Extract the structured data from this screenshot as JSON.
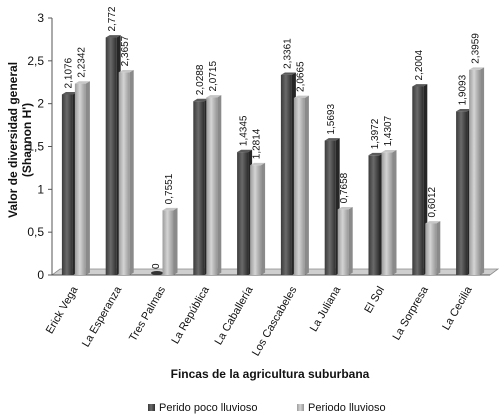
{
  "chart_data": {
    "type": "bar",
    "xlabel": "Fincas de la agricultura suburbana",
    "ylabel_line1": "Valor de diversidad general",
    "ylabel_line2": "(Shannon H')",
    "ylim": [
      0,
      3
    ],
    "yticks": [
      "0",
      "0,5",
      "1",
      "1,5",
      "2",
      "2,5",
      "3"
    ],
    "grid": false,
    "legend_position": "bottom",
    "categories": [
      "Erick Vega",
      "La Esperanza",
      "Tres Palmas",
      "La República",
      "La Caballería",
      "Los Cascabeles",
      "La Juliana",
      "El Sol",
      "La Sorpresa",
      "La Cecilia"
    ],
    "series": [
      {
        "name": "Perido poco lluvioso",
        "color": "#4a4a4a",
        "values": [
          2.1076,
          2.772,
          0,
          2.0288,
          1.4345,
          2.3361,
          1.5693,
          1.3972,
          2.2004,
          1.9093
        ],
        "labels": [
          "2,1076",
          "2,772",
          "0",
          "2,0288",
          "1,4345",
          "2,3361",
          "1,5693",
          "1,3972",
          "2,2004",
          "1,9093"
        ]
      },
      {
        "name": "Periodo lluvioso",
        "color": "#b0b0b0",
        "values": [
          2.2342,
          2.3657,
          0.7551,
          2.0715,
          1.2814,
          2.0665,
          0.7658,
          1.4307,
          0.6012,
          2.3959
        ],
        "labels": [
          "2,2342",
          "2,3657",
          "0,7551",
          "2,0715",
          "1,2814",
          "2,0665",
          "0,7658",
          "1,4307",
          "0,6012",
          "2,3959"
        ]
      }
    ]
  }
}
